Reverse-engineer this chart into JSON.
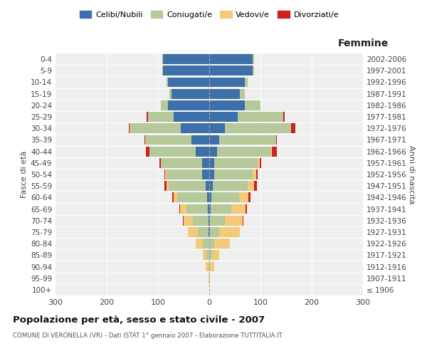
{
  "age_groups": [
    "100+",
    "95-99",
    "90-94",
    "85-89",
    "80-84",
    "75-79",
    "70-74",
    "65-69",
    "60-64",
    "55-59",
    "50-54",
    "45-49",
    "40-44",
    "35-39",
    "30-34",
    "25-29",
    "20-24",
    "15-19",
    "10-14",
    "5-9",
    "0-4"
  ],
  "birth_years": [
    "≤ 1906",
    "1907-1911",
    "1912-1916",
    "1917-1921",
    "1922-1926",
    "1927-1931",
    "1932-1936",
    "1937-1941",
    "1942-1946",
    "1947-1951",
    "1952-1956",
    "1957-1961",
    "1962-1966",
    "1967-1971",
    "1972-1976",
    "1977-1981",
    "1982-1986",
    "1987-1991",
    "1992-1996",
    "1997-2001",
    "2002-2006"
  ],
  "colors": {
    "celibi": "#3d6fa8",
    "coniugati": "#b5c99a",
    "vedovi": "#f5c97a",
    "divorziati": "#cc2222"
  },
  "males_celibi": [
    0,
    0,
    0,
    0,
    0,
    2,
    2,
    3,
    4,
    7,
    14,
    14,
    26,
    35,
    55,
    70,
    80,
    73,
    80,
    90,
    90
  ],
  "males_coniugati": [
    0,
    0,
    2,
    5,
    12,
    20,
    30,
    42,
    58,
    72,
    70,
    80,
    90,
    90,
    100,
    50,
    15,
    5,
    3,
    2,
    2
  ],
  "males_vedovi": [
    0,
    2,
    5,
    8,
    15,
    20,
    18,
    12,
    8,
    4,
    2,
    1,
    0,
    0,
    0,
    0,
    0,
    0,
    0,
    0,
    0
  ],
  "males_divorziati": [
    0,
    0,
    0,
    0,
    0,
    0,
    2,
    2,
    2,
    4,
    2,
    2,
    8,
    2,
    2,
    2,
    0,
    0,
    0,
    0,
    0
  ],
  "females_nubili": [
    0,
    0,
    0,
    0,
    0,
    2,
    2,
    3,
    4,
    7,
    10,
    10,
    15,
    20,
    30,
    55,
    70,
    60,
    70,
    85,
    85
  ],
  "females_coniugate": [
    0,
    0,
    2,
    5,
    10,
    18,
    28,
    40,
    55,
    68,
    75,
    85,
    105,
    110,
    130,
    90,
    30,
    10,
    5,
    3,
    2
  ],
  "females_vedove": [
    0,
    2,
    8,
    15,
    30,
    40,
    35,
    28,
    18,
    12,
    6,
    3,
    2,
    0,
    0,
    0,
    0,
    0,
    0,
    0,
    0
  ],
  "females_divorziate": [
    0,
    0,
    0,
    0,
    0,
    0,
    2,
    2,
    4,
    6,
    4,
    4,
    10,
    2,
    8,
    2,
    0,
    0,
    0,
    0,
    0
  ],
  "xlim": 300,
  "title": "Popolazione per età, sesso e stato civile - 2007",
  "subtitle": "COMUNE DI VERONELLA (VR) - Dati ISTAT 1° gennaio 2007 - Elaborazione TUTTITALIA.IT",
  "xlabel_right": "Femmine",
  "ylabel_left": "Fasce di età",
  "ylabel_right": "Anni di nascita",
  "legend_labels": [
    "Celibi/Nubili",
    "Coniugati/e",
    "Vedovi/e",
    "Divorziati/e"
  ],
  "bg_color": "#ffffff",
  "plot_bg_color": "#efefef"
}
